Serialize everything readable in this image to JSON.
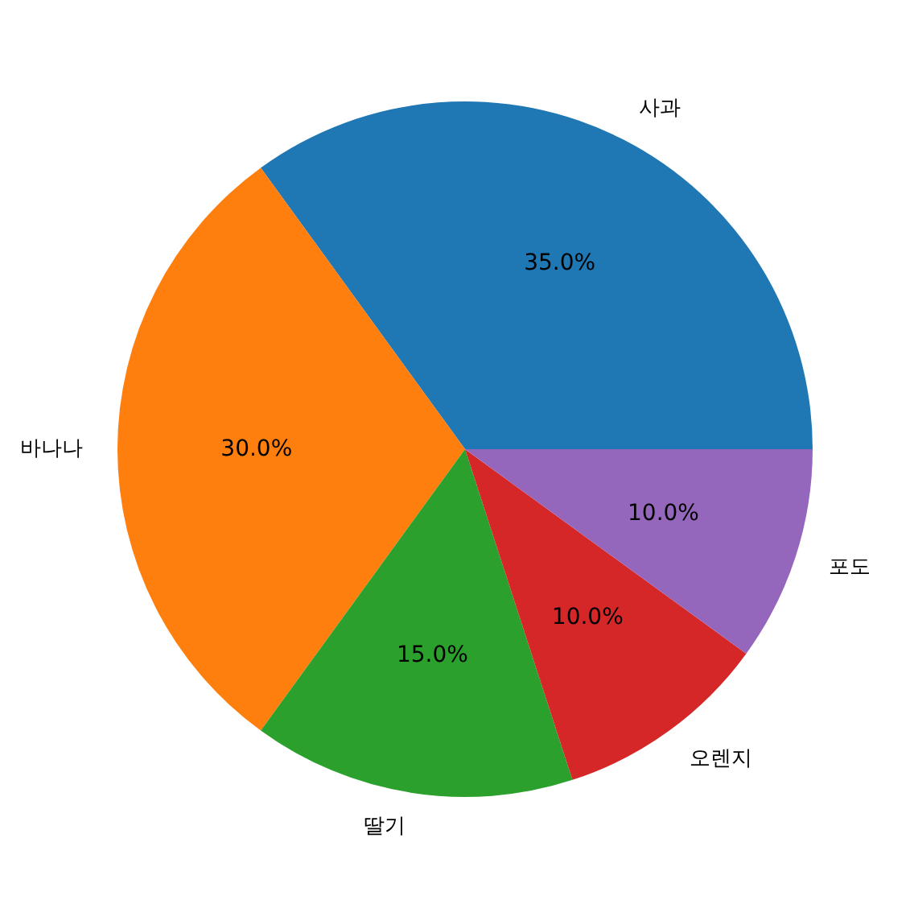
{
  "chart_data": {
    "type": "pie",
    "categories": [
      "사과",
      "바나나",
      "딸기",
      "오렌지",
      "포도"
    ],
    "values": [
      35,
      30,
      15,
      10,
      10
    ],
    "colors": [
      "#1f77b4",
      "#ff7f0e",
      "#2ca02c",
      "#d62728",
      "#9467bd"
    ],
    "value_labels": [
      "35.0%",
      "30.0%",
      "15.0%",
      "10.0%",
      "10.0%"
    ]
  }
}
